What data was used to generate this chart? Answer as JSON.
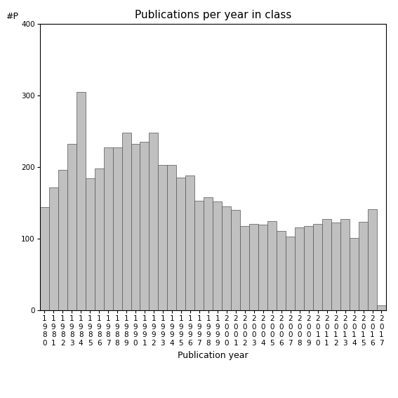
{
  "title": "Publications per year in class",
  "xlabel": "Publication year",
  "ylabel": "#P",
  "ylim": [
    0,
    400
  ],
  "yticks": [
    0,
    100,
    200,
    300,
    400
  ],
  "bar_color": "#c0c0c0",
  "edge_color": "#555555",
  "years": [
    1980,
    1981,
    1982,
    1983,
    1984,
    1985,
    1986,
    1987,
    1988,
    1989,
    1990,
    1991,
    1992,
    1993,
    1994,
    1995,
    1996,
    1997,
    1998,
    1999,
    2000,
    2001,
    2002,
    2003,
    2004,
    2005,
    2006,
    2007,
    2008,
    2009,
    2010,
    2011,
    2012,
    2013,
    2014,
    2015,
    2016,
    2017
  ],
  "values": [
    144,
    172,
    196,
    232,
    305,
    184,
    198,
    228,
    228,
    248,
    232,
    235,
    248,
    203,
    203,
    185,
    188,
    153,
    158,
    152,
    145,
    140,
    118,
    121,
    120,
    125,
    111,
    103,
    116,
    118,
    121,
    128,
    123,
    128,
    101,
    124,
    141,
    7
  ],
  "background_color": "#ffffff",
  "title_fontsize": 11,
  "label_fontsize": 9,
  "tick_fontsize": 7.5
}
